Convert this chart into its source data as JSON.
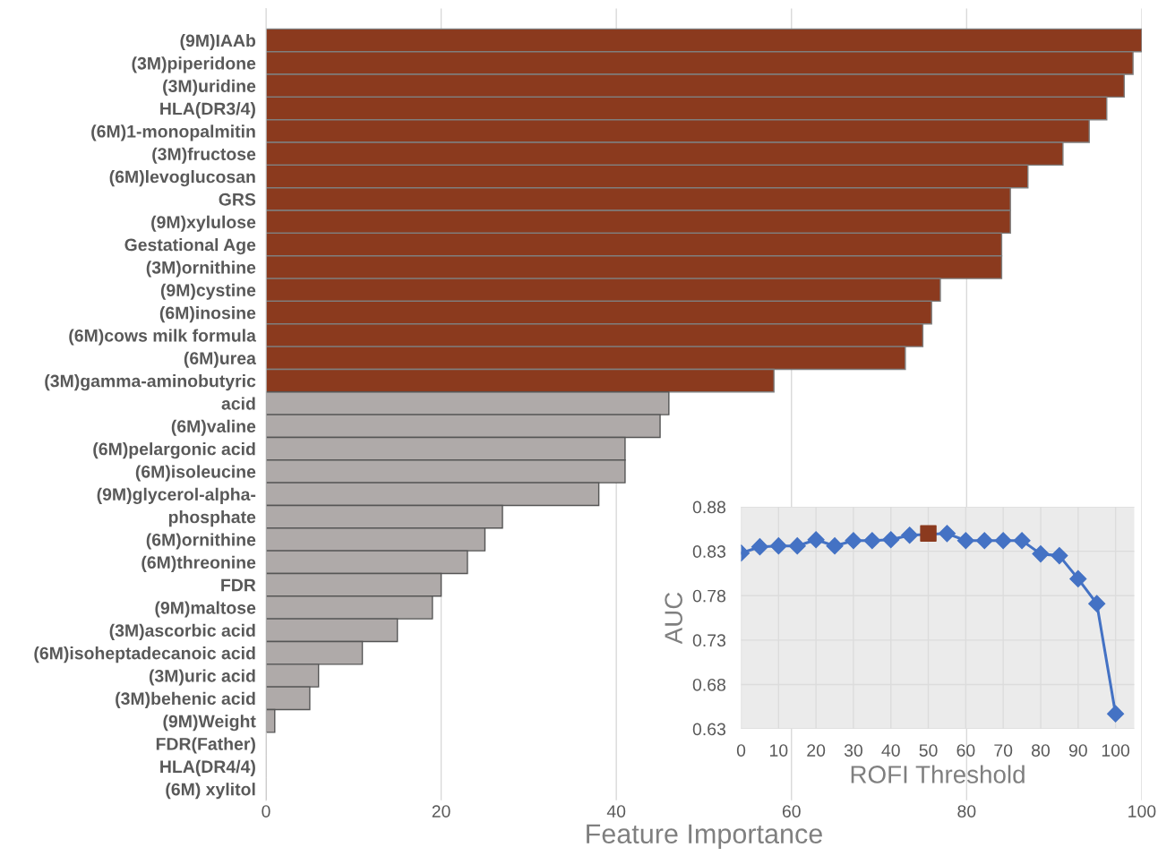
{
  "chart_data": [
    {
      "type": "bar",
      "orientation": "horizontal",
      "xlabel": "Feature Importance",
      "categories": [
        "(9M)IAAb",
        "(3M)piperidone",
        "(3M)uridine",
        "HLA(DR3/4)",
        "(6M)1-monopalmitin",
        "(3M)fructose",
        "(6M)levoglucosan",
        "GRS",
        "(9M)xylulose",
        "Gestational Age",
        "(3M)ornithine",
        "(9M)cystine",
        "(6M)inosine",
        "(6M)cows milk formula",
        "(6M)urea",
        "(3M)gamma-aminobutyric",
        "acid",
        "(6M)valine",
        "(6M)pelargonic acid",
        "(6M)isoleucine",
        "(9M)glycerol-alpha-",
        "phosphate",
        "(6M)ornithine",
        "(6M)threonine",
        "FDR",
        "(9M)maltose",
        "(3M)ascorbic acid",
        "(6M)isoheptadecanoic acid",
        "(3M)uric acid",
        "(3M)behenic acid",
        "(9M)Weight",
        "FDR(Father)",
        "HLA(DR4/4)",
        "(6M) xylitol"
      ],
      "values": [
        100,
        99,
        98,
        96,
        94,
        91,
        87,
        85,
        85,
        84,
        84,
        77,
        76,
        75,
        73,
        58,
        46,
        45,
        41,
        41,
        38,
        27,
        25,
        23,
        20,
        19,
        15,
        11,
        6,
        5,
        1,
        0,
        0,
        0
      ],
      "colors": [
        "#8b3a1e",
        "#8b3a1e",
        "#8b3a1e",
        "#8b3a1e",
        "#8b3a1e",
        "#8b3a1e",
        "#8b3a1e",
        "#8b3a1e",
        "#8b3a1e",
        "#8b3a1e",
        "#8b3a1e",
        "#8b3a1e",
        "#8b3a1e",
        "#8b3a1e",
        "#8b3a1e",
        "#8b3a1e",
        "#afaaa9",
        "#afaaa9",
        "#afaaa9",
        "#afaaa9",
        "#afaaa9",
        "#afaaa9",
        "#afaaa9",
        "#afaaa9",
        "#afaaa9",
        "#afaaa9",
        "#afaaa9",
        "#afaaa9",
        "#afaaa9",
        "#afaaa9",
        "#afaaa9",
        "#afaaa9",
        "#afaaa9",
        "#afaaa9"
      ],
      "xlim": [
        0,
        100
      ],
      "xticks": [
        0,
        20,
        40,
        60,
        80,
        100
      ],
      "grid": "x",
      "legend": false
    },
    {
      "type": "line",
      "xlabel": "ROFI Threshold",
      "ylabel": "AUC",
      "marker": "diamond",
      "line_style": "solid",
      "series": [
        {
          "color": "#4472c4",
          "x": [
            0,
            5,
            10,
            15,
            20,
            25,
            30,
            35,
            40,
            45,
            50,
            55,
            60,
            65,
            70,
            75,
            80,
            85,
            90,
            95,
            100
          ],
          "values": [
            0.828,
            0.835,
            0.836,
            0.836,
            0.843,
            0.836,
            0.842,
            0.842,
            0.843,
            0.848,
            null,
            0.85,
            0.842,
            0.842,
            0.842,
            0.842,
            0.827,
            0.825,
            0.799,
            0.771,
            0.647
          ]
        },
        {
          "type": "scatter",
          "marker": "square",
          "color": "#8b3a1e",
          "x": [
            50
          ],
          "values": [
            0.85
          ]
        }
      ],
      "xlim": [
        0,
        105
      ],
      "xticks": [
        0,
        10,
        20,
        30,
        40,
        50,
        60,
        70,
        80,
        90,
        100
      ],
      "ylim": [
        0.63,
        0.88
      ],
      "yticks": [
        {
          "value": 0.63,
          "label": "0.63"
        },
        {
          "value": 0.68,
          "label": "0.68"
        },
        {
          "value": 0.73,
          "label": "0.73"
        },
        {
          "value": 0.78,
          "label": "0.78"
        },
        {
          "value": 0.83,
          "label": "0.83"
        },
        {
          "value": 0.88,
          "label": "0.88"
        }
      ],
      "grid": true,
      "legend": false
    }
  ]
}
